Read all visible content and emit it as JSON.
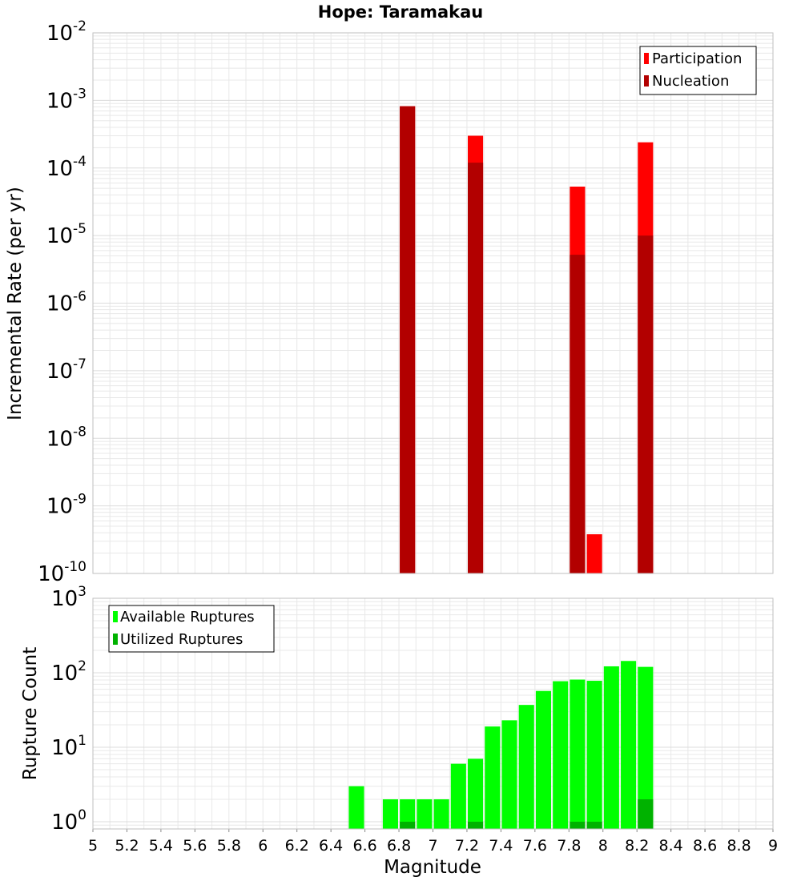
{
  "title": "Hope: Taramakau",
  "colors": {
    "participation": "#ff0000",
    "nucleation": "#b20000",
    "available": "#00ff00",
    "utilized": "#00b200",
    "grid": "#e8e8e8",
    "frame": "#bfbfbf"
  },
  "chart_data": [
    {
      "type": "bar",
      "panel": "top",
      "title": "Hope: Taramakau",
      "xlabel": "",
      "ylabel": "Incremental Rate (per yr)",
      "yscale": "log",
      "ylim": [
        1e-10,
        0.01
      ],
      "xlim": [
        5,
        9
      ],
      "bar_width": 0.09,
      "grid": true,
      "legend_position": "top-right",
      "ytick_exponents": [
        "-10",
        "-9",
        "-8",
        "-7",
        "-6",
        "-5",
        "-4",
        "-3",
        "-2"
      ],
      "series": [
        {
          "name": "Participation",
          "color": "#ff0000",
          "x": [
            6.85,
            7.25,
            7.85,
            7.95,
            8.25
          ],
          "values": [
            0.00082,
            0.0003,
            5.3e-05,
            3.8e-10,
            0.00024
          ]
        },
        {
          "name": "Nucleation",
          "color": "#b20000",
          "x": [
            6.85,
            7.25,
            7.85,
            8.25
          ],
          "values": [
            0.00082,
            0.00012,
            5.2e-06,
            1e-05
          ]
        }
      ]
    },
    {
      "type": "bar",
      "panel": "bottom",
      "xlabel": "Magnitude",
      "ylabel": "Rupture Count",
      "yscale": "log",
      "ylim": [
        0.8,
        1000
      ],
      "xlim": [
        5,
        9
      ],
      "bar_width": 0.09,
      "grid": true,
      "legend_position": "top-left",
      "ytick_exponents": [
        "0",
        "1",
        "2",
        "3"
      ],
      "xticks": [
        "5",
        "5.2",
        "5.4",
        "5.6",
        "5.8",
        "6",
        "6.2",
        "6.4",
        "6.6",
        "6.8",
        "7",
        "7.2",
        "7.4",
        "7.6",
        "7.8",
        "8",
        "8.2",
        "8.4",
        "8.6",
        "8.8",
        "9"
      ],
      "series": [
        {
          "name": "Available Ruptures",
          "color": "#00ff00",
          "x": [
            6.55,
            6.75,
            6.85,
            6.95,
            7.05,
            7.15,
            7.25,
            7.35,
            7.45,
            7.55,
            7.65,
            7.75,
            7.85,
            7.95,
            8.05,
            8.15,
            8.25
          ],
          "values": [
            3,
            2,
            2,
            2,
            2,
            6,
            7,
            19,
            23,
            37,
            57,
            77,
            81,
            78,
            122,
            144,
            120
          ]
        },
        {
          "name": "Utilized Ruptures",
          "color": "#00b200",
          "x": [
            6.85,
            7.25,
            7.85,
            7.95,
            8.25
          ],
          "values": [
            1,
            1,
            1,
            1,
            2
          ]
        }
      ]
    }
  ]
}
